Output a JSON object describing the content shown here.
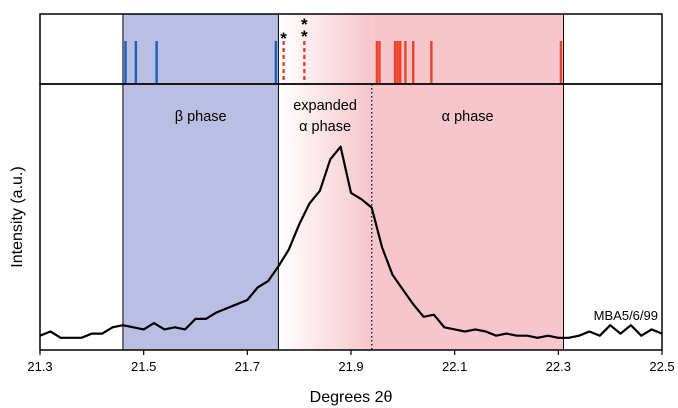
{
  "chart_data": {
    "type": "line",
    "xlabel": "Degrees 2θ",
    "ylabel": "Intensity (a.u.)",
    "xlim": [
      21.3,
      22.5
    ],
    "x_ticks": [
      "21.3",
      "21.5",
      "21.7",
      "21.9",
      "22.1",
      "22.3",
      "22.5"
    ],
    "y_ticks_shown": false,
    "grid": false,
    "sample_label": "MBA5/6/99",
    "regions": [
      {
        "label": "β phase",
        "x_start": 21.46,
        "x_end": 21.76,
        "color": "#b8bfe2"
      },
      {
        "label": "expanded α phase",
        "label_lines": [
          "expanded",
          "α phase"
        ],
        "x_start": 21.76,
        "x_end": 21.94,
        "gradient": [
          "#ffffff",
          "#f6c6cc"
        ]
      },
      {
        "label": "α phase",
        "x_start": 21.94,
        "x_end": 22.31,
        "color": "#f6c6cc"
      }
    ],
    "divider_x": 21.94,
    "reference_marks": {
      "beta": {
        "color": "#1f5bbf",
        "x": [
          21.465,
          21.485,
          21.525,
          21.755
        ]
      },
      "alpha": {
        "color": "#e8432a",
        "x": [
          21.95,
          21.955,
          21.985,
          21.99,
          21.995,
          22.005,
          22.02,
          22.055,
          22.305
        ]
      },
      "dashed": {
        "color": "#e8432a",
        "x": [
          21.77,
          21.81
        ]
      },
      "star_labels": [
        {
          "x": 21.77,
          "text": "*"
        },
        {
          "x": 21.81,
          "text": "*"
        },
        {
          "x": 21.81,
          "text": "*"
        }
      ]
    },
    "series": [
      {
        "x": [
          21.3,
          21.32,
          21.34,
          21.36,
          21.38,
          21.4,
          21.42,
          21.44,
          21.46,
          21.48,
          21.5,
          21.52,
          21.54,
          21.56,
          21.58,
          21.6,
          21.62,
          21.64,
          21.66,
          21.68,
          21.7,
          21.72,
          21.74,
          21.76,
          21.78,
          21.8,
          21.82,
          21.84,
          21.86,
          21.88,
          21.9,
          21.92,
          21.94,
          21.96,
          21.98,
          22.0,
          22.02,
          22.04,
          22.06,
          22.08,
          22.1,
          22.12,
          22.14,
          22.16,
          22.18,
          22.2,
          22.22,
          22.24,
          22.26,
          22.28,
          22.3,
          22.32,
          22.34,
          22.36,
          22.38,
          22.4,
          22.42,
          22.44,
          22.46,
          22.48,
          22.5
        ],
        "y": [
          0.03,
          0.05,
          0.02,
          0.02,
          0.02,
          0.04,
          0.04,
          0.07,
          0.08,
          0.07,
          0.06,
          0.09,
          0.06,
          0.07,
          0.06,
          0.11,
          0.11,
          0.14,
          0.16,
          0.18,
          0.2,
          0.26,
          0.29,
          0.36,
          0.44,
          0.56,
          0.66,
          0.72,
          0.87,
          0.93,
          0.71,
          0.68,
          0.64,
          0.45,
          0.32,
          0.25,
          0.18,
          0.12,
          0.13,
          0.07,
          0.06,
          0.05,
          0.06,
          0.05,
          0.03,
          0.04,
          0.03,
          0.03,
          0.02,
          0.03,
          0.02,
          0.02,
          0.03,
          0.05,
          0.03,
          0.08,
          0.04,
          0.08,
          0.03,
          0.06,
          0.04
        ]
      }
    ]
  }
}
